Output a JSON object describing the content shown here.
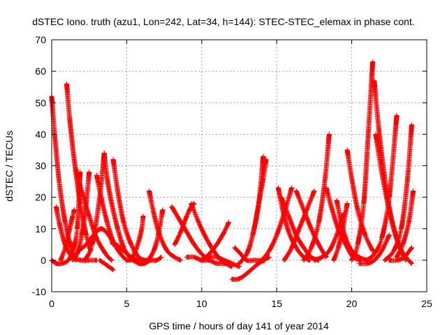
{
  "chart_data": {
    "type": "scatter",
    "title": "dSTEC Iono. truth (azu1, Lon=242, Lat=34, h=144): STEC-STEC_elemax in phase cont.",
    "xlabel": "GPS time / hours of day 141 of year 2014",
    "ylabel": "dSTEC  / TECUs",
    "xlim": [
      0,
      25
    ],
    "ylim": [
      -10,
      70
    ],
    "xticks": [
      0,
      5,
      10,
      15,
      20,
      25
    ],
    "yticks": [
      -10,
      0,
      10,
      20,
      30,
      40,
      50,
      60,
      70
    ],
    "grid": true,
    "marker": "+",
    "color": "#ff0000",
    "arcs": [
      {
        "x": [
          0.0,
          0.2,
          0.5,
          0.9,
          1.3,
          1.6
        ],
        "y": [
          52,
          40,
          25,
          12,
          4,
          0
        ]
      },
      {
        "x": [
          0.0,
          0.3,
          0.7,
          1.1,
          1.4,
          1.7,
          1.9
        ],
        "y": [
          0,
          -1,
          -1,
          0,
          3,
          10,
          28
        ]
      },
      {
        "x": [
          0.3,
          0.5,
          0.9,
          1.4,
          2.0,
          2.5,
          3.0
        ],
        "y": [
          17,
          12,
          5,
          1,
          0,
          0,
          0
        ]
      },
      {
        "x": [
          0.6,
          0.9,
          1.2,
          1.4,
          1.5
        ],
        "y": [
          0,
          4,
          10,
          14,
          16
        ]
      },
      {
        "x": [
          1.0,
          1.2,
          1.5,
          1.9,
          2.3,
          2.6
        ],
        "y": [
          56,
          45,
          32,
          18,
          8,
          3
        ]
      },
      {
        "x": [
          1.4,
          1.7,
          2.0,
          2.3,
          2.5
        ],
        "y": [
          0,
          2,
          8,
          18,
          28
        ]
      },
      {
        "x": [
          1.6,
          2.0,
          2.5,
          3.0,
          3.6,
          4.0
        ],
        "y": [
          29,
          22,
          14,
          7,
          2,
          0
        ]
      },
      {
        "x": [
          1.8,
          2.3,
          2.8,
          3.3,
          3.8,
          4.1
        ],
        "y": [
          3,
          5,
          8,
          10,
          8,
          5
        ]
      },
      {
        "x": [
          2.2,
          2.7,
          3.2,
          3.5
        ],
        "y": [
          0,
          5,
          20,
          34
        ]
      },
      {
        "x": [
          3.0,
          3.3,
          3.7,
          4.1,
          4.6,
          5.0
        ],
        "y": [
          27,
          20,
          12,
          6,
          2,
          0
        ]
      },
      {
        "x": [
          3.5,
          3.7,
          4.0,
          4.4,
          4.8,
          5.2
        ],
        "y": [
          34,
          26,
          18,
          10,
          4,
          1
        ]
      },
      {
        "x": [
          3.2,
          3.5,
          3.8,
          4.1
        ],
        "y": [
          0,
          -1,
          -2,
          -3
        ]
      },
      {
        "x": [
          4.1,
          4.4,
          4.8,
          5.3,
          5.8,
          6.2
        ],
        "y": [
          32,
          22,
          12,
          5,
          1,
          0
        ]
      },
      {
        "x": [
          4.3,
          4.8,
          5.3,
          5.8,
          6.3
        ],
        "y": [
          5,
          3,
          1,
          0,
          0
        ]
      },
      {
        "x": [
          5.0,
          5.4,
          5.8,
          6.2,
          6.6,
          7.0,
          7.3
        ],
        "y": [
          0,
          0,
          -1,
          -1,
          0,
          0,
          1
        ]
      },
      {
        "x": [
          5.2,
          5.5,
          5.8,
          6.0,
          6.1
        ],
        "y": [
          0,
          2,
          6,
          10,
          14
        ]
      },
      {
        "x": [
          6.5,
          6.8,
          7.2,
          7.7,
          8.2,
          8.6
        ],
        "y": [
          22,
          15,
          8,
          3,
          1,
          0
        ]
      },
      {
        "x": [
          5.6,
          6.0,
          6.4,
          6.8,
          7.1,
          7.4
        ],
        "y": [
          0,
          -1,
          0,
          3,
          8,
          16
        ]
      },
      {
        "x": [
          8.0,
          8.5,
          9.0,
          9.5,
          10.0,
          10.5
        ],
        "y": [
          17,
          13,
          9,
          5,
          2,
          0
        ]
      },
      {
        "x": [
          8.2,
          8.6,
          9.0,
          9.3,
          9.5
        ],
        "y": [
          5,
          9,
          14,
          17,
          18
        ]
      },
      {
        "x": [
          9.0,
          9.5,
          10.0,
          10.5,
          11.0,
          11.5,
          12.0
        ],
        "y": [
          1,
          1,
          0,
          0,
          -1,
          -1,
          -2
        ]
      },
      {
        "x": [
          9.3,
          9.8,
          10.3,
          10.8,
          11.3,
          11.6
        ],
        "y": [
          18,
          12,
          7,
          3,
          0,
          -1
        ]
      },
      {
        "x": [
          10.0,
          10.5,
          11.0,
          11.5,
          11.8
        ],
        "y": [
          0,
          2,
          5,
          9,
          12
        ]
      },
      {
        "x": [
          10.5,
          11.0,
          11.5,
          12.0,
          12.5
        ],
        "y": [
          1,
          1,
          0,
          -1,
          -2
        ]
      },
      {
        "x": [
          12.0,
          12.4,
          12.8,
          13.3,
          13.8,
          14.2
        ],
        "y": [
          -6,
          -6,
          -5,
          -3,
          -1,
          0
        ]
      },
      {
        "x": [
          12.5,
          13.0,
          13.4,
          13.8,
          14.1
        ],
        "y": [
          -1,
          2,
          8,
          18,
          33
        ]
      },
      {
        "x": [
          12.2,
          12.6,
          13.0,
          13.5,
          14.0,
          14.5
        ],
        "y": [
          4,
          2,
          0,
          0,
          0,
          1
        ]
      },
      {
        "x": [
          13.5,
          13.8,
          14.1,
          14.3
        ],
        "y": [
          10,
          18,
          26,
          32
        ]
      },
      {
        "x": [
          14.0,
          14.5,
          15.0,
          15.5,
          16.0
        ],
        "y": [
          0,
          3,
          8,
          15,
          23
        ]
      },
      {
        "x": [
          15.1,
          15.4,
          15.8,
          16.3,
          16.8,
          17.2
        ],
        "y": [
          23,
          16,
          9,
          4,
          1,
          0
        ]
      },
      {
        "x": [
          15.3,
          15.8,
          16.3,
          16.8,
          17.3,
          17.8
        ],
        "y": [
          20,
          14,
          8,
          4,
          1,
          0
        ]
      },
      {
        "x": [
          15.5,
          16.0,
          16.5,
          17.0,
          17.5
        ],
        "y": [
          0,
          4,
          10,
          16,
          22
        ]
      },
      {
        "x": [
          16.3,
          16.8,
          17.3,
          17.8,
          18.3
        ],
        "y": [
          22,
          16,
          10,
          5,
          1
        ]
      },
      {
        "x": [
          16.8,
          17.3,
          17.8,
          18.2,
          18.5
        ],
        "y": [
          0,
          4,
          12,
          25,
          40
        ]
      },
      {
        "x": [
          17.5,
          18.0,
          18.5,
          19.0,
          19.5
        ],
        "y": [
          0,
          1,
          3,
          8,
          15
        ]
      },
      {
        "x": [
          18.3,
          18.7,
          19.1,
          19.6,
          20.1,
          20.6
        ],
        "y": [
          23,
          16,
          10,
          5,
          1,
          0
        ]
      },
      {
        "x": [
          18.8,
          19.1,
          19.4,
          19.7
        ],
        "y": [
          0,
          4,
          10,
          18
        ]
      },
      {
        "x": [
          19.0,
          19.3,
          19.6,
          20.0,
          20.5,
          21.0
        ],
        "y": [
          19,
          12,
          7,
          3,
          1,
          0
        ]
      },
      {
        "x": [
          19.7,
          20.0,
          20.4,
          20.9,
          21.4
        ],
        "y": [
          35,
          26,
          16,
          8,
          3
        ]
      },
      {
        "x": [
          20.0,
          20.4,
          20.8,
          21.1,
          21.4
        ],
        "y": [
          0,
          5,
          18,
          40,
          63
        ]
      },
      {
        "x": [
          21.5,
          21.8,
          22.2,
          22.7,
          23.2,
          23.6
        ],
        "y": [
          57,
          42,
          26,
          12,
          4,
          0
        ]
      },
      {
        "x": [
          21.6,
          22.0,
          22.5,
          23.0,
          23.4
        ],
        "y": [
          40,
          28,
          16,
          7,
          2
        ]
      },
      {
        "x": [
          21.0,
          21.5,
          22.0,
          22.5,
          23.0
        ],
        "y": [
          0,
          2,
          7,
          20,
          46
        ]
      },
      {
        "x": [
          22.2,
          22.8,
          23.3,
          23.7,
          24.0
        ],
        "y": [
          0,
          3,
          10,
          25,
          43
        ]
      },
      {
        "x": [
          23.0,
          23.4,
          23.8,
          24.1
        ],
        "y": [
          1,
          5,
          12,
          22
        ]
      },
      {
        "x": [
          22.5,
          23.0,
          23.5,
          24.0
        ],
        "y": [
          0,
          0,
          1,
          4
        ]
      },
      {
        "x": [
          23.2,
          23.6,
          24.0
        ],
        "y": [
          4,
          1,
          -1
        ]
      },
      {
        "x": [
          20.5,
          21.0,
          21.5,
          22.0,
          22.5
        ],
        "y": [
          -1,
          -1,
          0,
          3,
          8
        ]
      }
    ]
  }
}
